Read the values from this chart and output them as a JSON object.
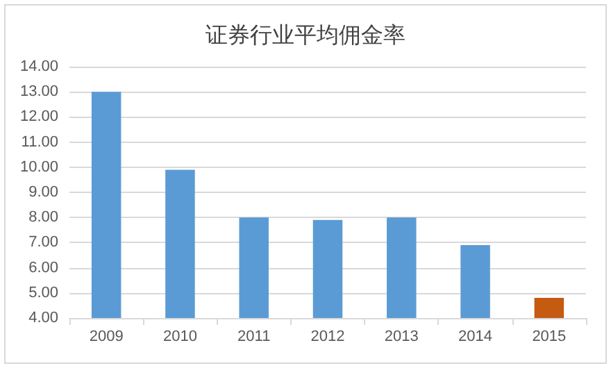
{
  "chart_data": {
    "type": "bar",
    "title": "证券行业平均佣金率",
    "categories": [
      "2009",
      "2010",
      "2011",
      "2012",
      "2013",
      "2014",
      "2015"
    ],
    "values": [
      13.0,
      9.9,
      8.0,
      7.9,
      8.0,
      6.9,
      4.8
    ],
    "colors": [
      "#5b9bd5",
      "#5b9bd5",
      "#5b9bd5",
      "#5b9bd5",
      "#5b9bd5",
      "#5b9bd5",
      "#c55a11"
    ],
    "ylim": [
      4,
      14
    ],
    "yticks": [
      {
        "value": 4,
        "label": "4.00"
      },
      {
        "value": 5,
        "label": "5.00"
      },
      {
        "value": 6,
        "label": "6.00"
      },
      {
        "value": 7,
        "label": "7.00"
      },
      {
        "value": 8,
        "label": "8.00"
      },
      {
        "value": 9,
        "label": "9.00"
      },
      {
        "value": 10,
        "label": "10.00"
      },
      {
        "value": 11,
        "label": "11.00"
      },
      {
        "value": 12,
        "label": "12.00"
      },
      {
        "value": 13,
        "label": "13.00"
      },
      {
        "value": 14,
        "label": "14.00"
      }
    ],
    "grid": "y"
  }
}
